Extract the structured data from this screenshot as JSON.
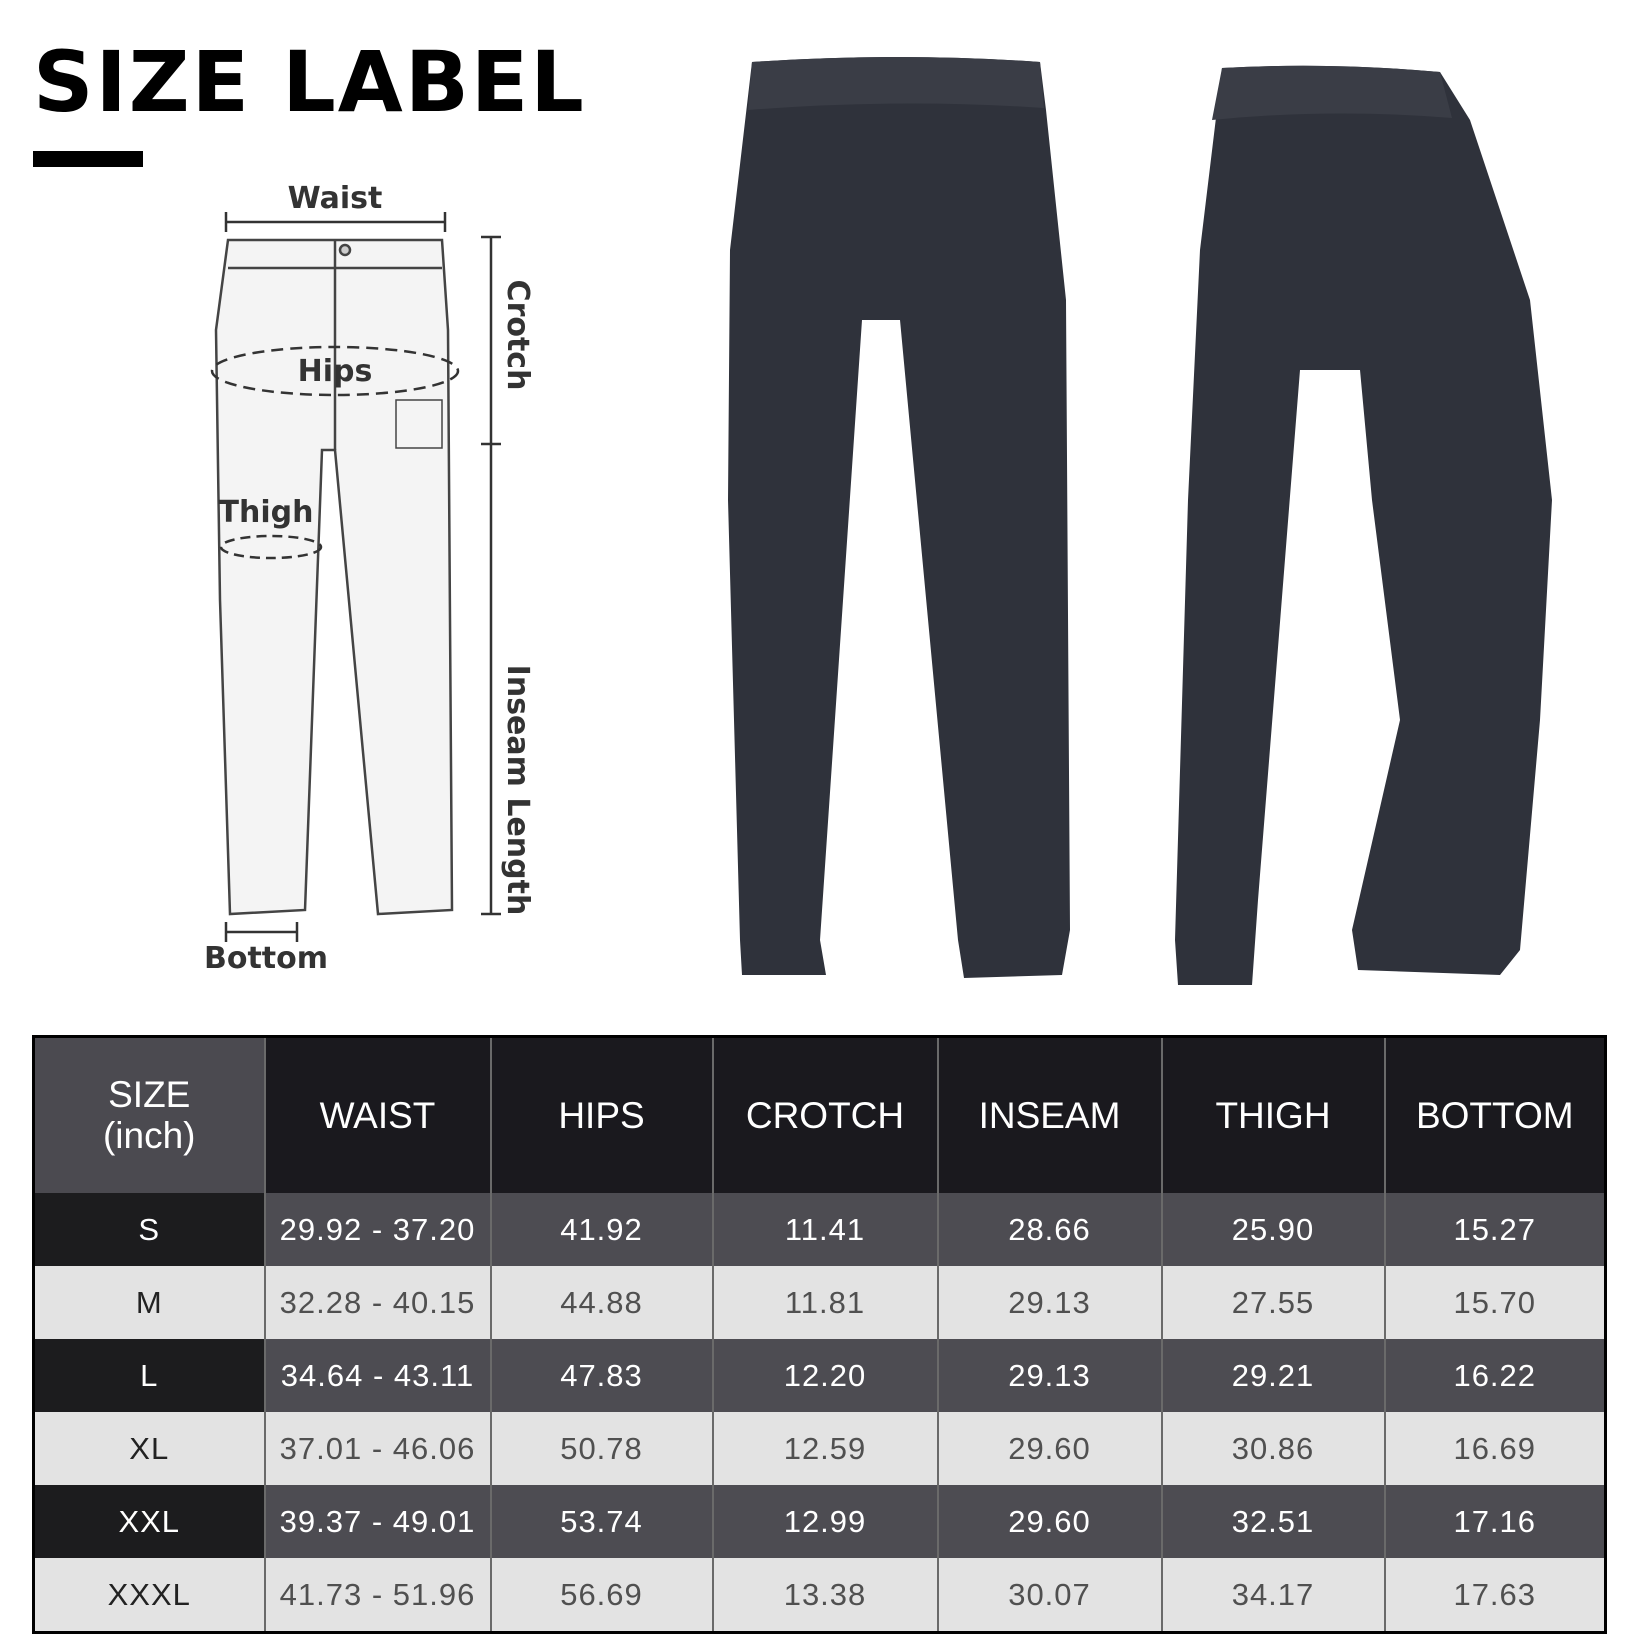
{
  "title": "SIZE LABEL",
  "diagram": {
    "waist": "Waist",
    "crotch": "Crotch",
    "hips": "Hips",
    "thigh": "Thigh",
    "inseam": "Inseam Length",
    "bottom": "Bottom"
  },
  "colors": {
    "garment": "#2f323b",
    "header": "#1a191e",
    "row_dark": "#4d4c52",
    "row_light": "#e3e3e3"
  },
  "table": {
    "size_header_line1": "SIZE",
    "size_header_line2": "(inch)",
    "headers": [
      "WAIST",
      "HIPS",
      "CROTCH",
      "INSEAM",
      "THIGH",
      "BOTTOM"
    ],
    "rows": [
      {
        "size": "S",
        "values": [
          "29.92 - 37.20",
          "41.92",
          "11.41",
          "28.66",
          "25.90",
          "15.27"
        ]
      },
      {
        "size": "M",
        "values": [
          "32.28 - 40.15",
          "44.88",
          "11.81",
          "29.13",
          "27.55",
          "15.70"
        ]
      },
      {
        "size": "L",
        "values": [
          "34.64 - 43.11",
          "47.83",
          "12.20",
          "29.13",
          "29.21",
          "16.22"
        ]
      },
      {
        "size": "XL",
        "values": [
          "37.01 - 46.06",
          "50.78",
          "12.59",
          "29.60",
          "30.86",
          "16.69"
        ]
      },
      {
        "size": "XXL",
        "values": [
          "39.37 - 49.01",
          "53.74",
          "12.99",
          "29.60",
          "32.51",
          "17.16"
        ]
      },
      {
        "size": "XXXL",
        "values": [
          "41.73 - 51.96",
          "56.69",
          "13.38",
          "30.07",
          "34.17",
          "17.63"
        ]
      }
    ]
  }
}
